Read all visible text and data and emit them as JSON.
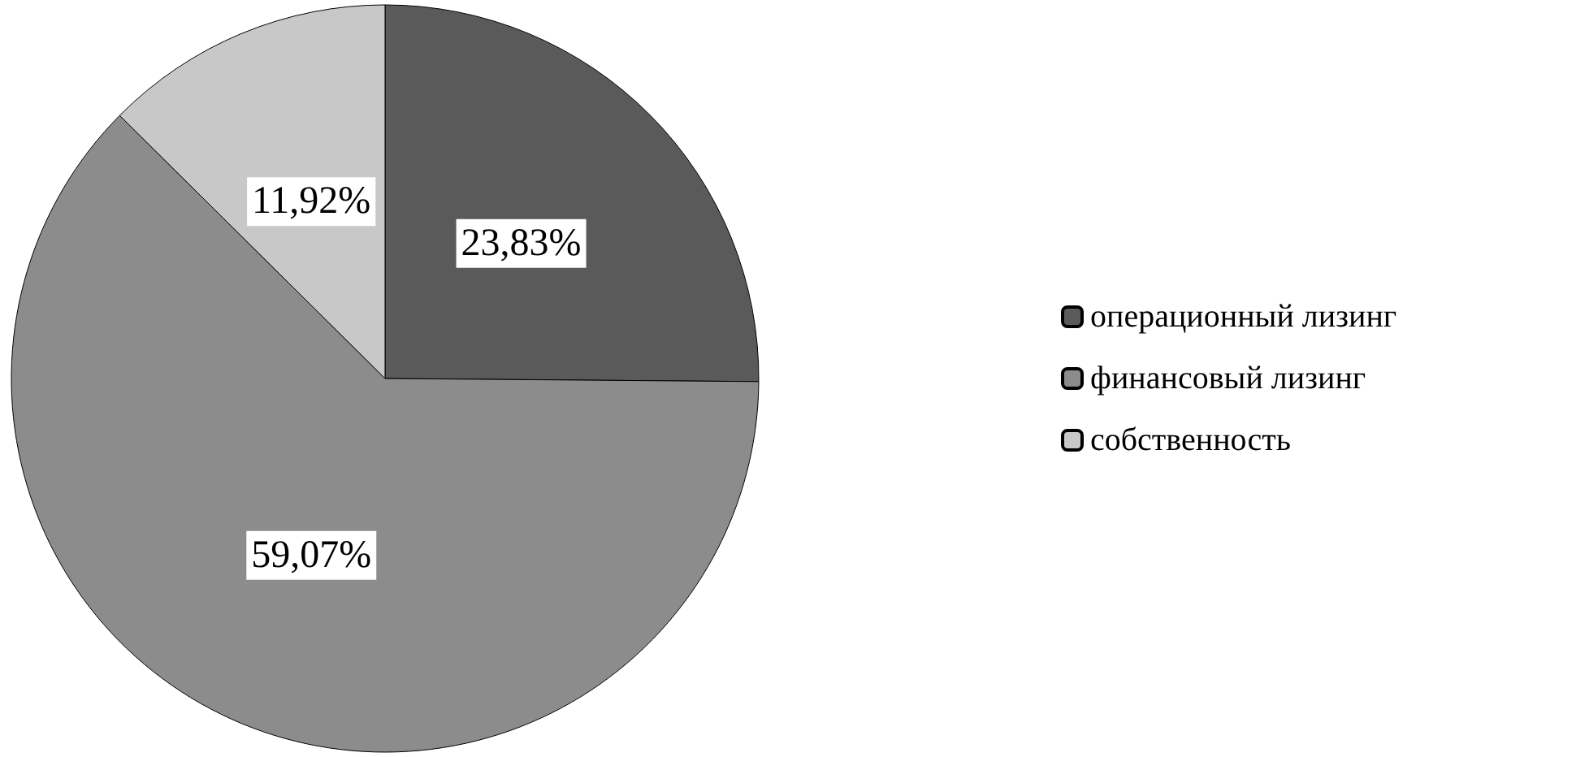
{
  "chart_data": {
    "type": "pie",
    "categories": [
      "операционный лизинг",
      "финансовый лизинг",
      "собственность"
    ],
    "values": [
      23.83,
      59.07,
      11.92
    ],
    "colors": [
      "#5a5a5a",
      "#8c8c8c",
      "#c8c8c8"
    ],
    "value_labels": [
      "23,83%",
      "59,07%",
      "11,92%"
    ],
    "legend": "right"
  }
}
